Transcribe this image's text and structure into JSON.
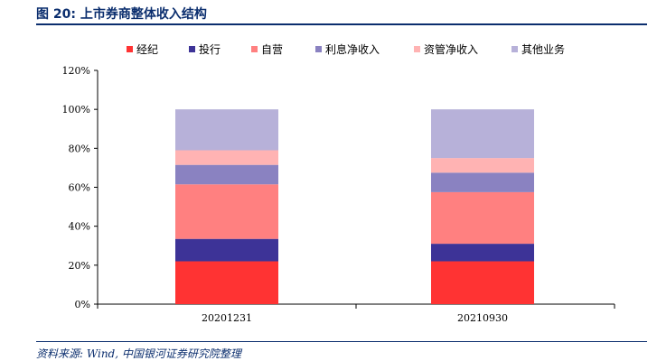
{
  "figure": {
    "label": "图 20:",
    "title": "上市券商整体收入结构",
    "source": "资料来源: Wind, 中国银河证券研究院整理"
  },
  "chart_data": {
    "type": "bar",
    "stacked": true,
    "percent": true,
    "categories": [
      "20201231",
      "20210930"
    ],
    "series": [
      {
        "name": "经纪",
        "color": "#ff3333",
        "values": [
          22,
          22
        ]
      },
      {
        "name": "投行",
        "color": "#3d3397",
        "values": [
          11.5,
          9
        ]
      },
      {
        "name": "自营",
        "color": "#ff8080",
        "values": [
          28,
          26.5
        ]
      },
      {
        "name": "利息净收入",
        "color": "#8a82c1",
        "values": [
          10,
          10
        ]
      },
      {
        "name": "资管净收入",
        "color": "#ffb3b3",
        "values": [
          7.5,
          7.5
        ]
      },
      {
        "name": "其他业务",
        "color": "#b7b1d9",
        "values": [
          21,
          25
        ]
      }
    ],
    "ylim": [
      0,
      120
    ],
    "yticks": [
      0,
      20,
      40,
      60,
      80,
      100,
      120
    ],
    "ytick_labels": [
      "0%",
      "20%",
      "40%",
      "60%",
      "80%",
      "100%",
      "120%"
    ],
    "legend_position": "top",
    "grid": false
  }
}
